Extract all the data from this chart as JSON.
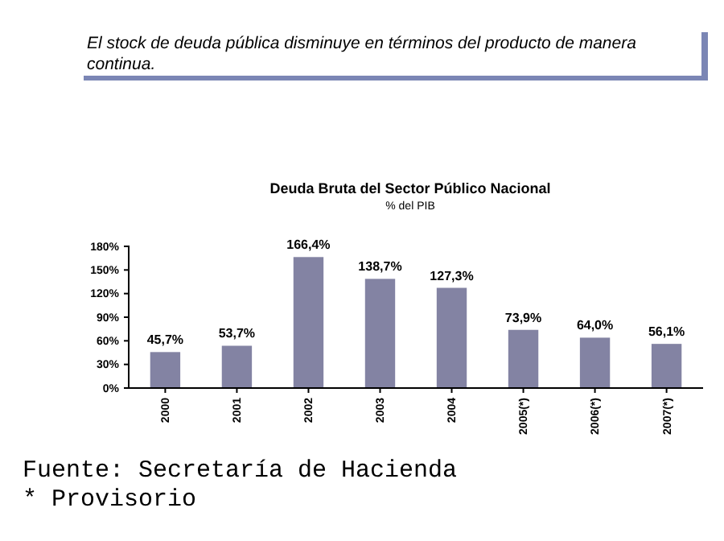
{
  "chart_data": {
    "type": "bar",
    "title": "Deuda Bruta del Sector Público Nacional",
    "subtitle": "% del PIB",
    "annotations": [
      "El stock de deuda pública disminuye en términos del producto de manera continua.",
      "Fuente: Secretaría de Hacienda",
      "* Provisorio"
    ],
    "categories": [
      "2000",
      "2001",
      "2002",
      "2003",
      "2004",
      "2005(*)",
      "2006(*)",
      "2007(*)"
    ],
    "values": [
      45.7,
      53.7,
      166.4,
      138.7,
      127.3,
      73.9,
      64.0,
      56.1
    ],
    "value_labels": [
      "45,7%",
      "53,7%",
      "166,4%",
      "138,7%",
      "127,3%",
      "73,9%",
      "64,0%",
      "56,1%"
    ],
    "color": "#8383a3",
    "ylim": [
      0,
      180
    ],
    "yticks": [
      {
        "value": 0,
        "label": "0%"
      },
      {
        "value": 30,
        "label": "30%"
      },
      {
        "value": 60,
        "label": "60%"
      },
      {
        "value": 90,
        "label": "90%"
      },
      {
        "value": 120,
        "label": "120%"
      },
      {
        "value": 150,
        "label": "150%"
      },
      {
        "value": 180,
        "label": "180%"
      }
    ],
    "grid": false
  }
}
